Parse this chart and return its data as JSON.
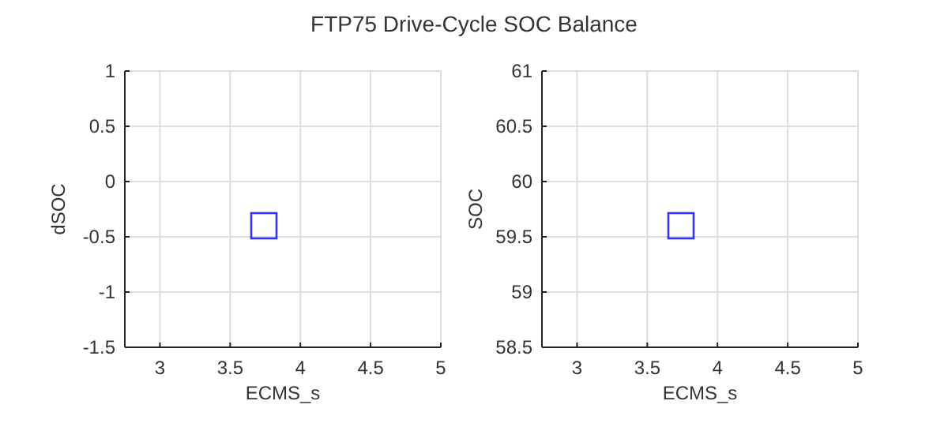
{
  "chart_data": [
    {
      "type": "scatter",
      "title": "FTP75 Drive-Cycle SOC Balance",
      "xlabel": "ECMS_s",
      "ylabel": "dSOC",
      "x": [
        3.74
      ],
      "series": [
        {
          "color": "#3333ff",
          "values": [
            -0.4
          ]
        }
      ],
      "xlim": [
        2.75,
        5
      ],
      "xticks": [
        3,
        3.5,
        4,
        4.5,
        5
      ],
      "ylim": [
        -1.5,
        1
      ],
      "yticks": [
        -1.5,
        -1,
        -0.5,
        0,
        0.5,
        1
      ],
      "grid": true,
      "marker": "square"
    },
    {
      "type": "scatter",
      "xlabel": "ECMS_s",
      "ylabel": "SOC",
      "x": [
        3.74
      ],
      "series": [
        {
          "color": "#3333ff",
          "values": [
            59.6
          ]
        }
      ],
      "xlim": [
        2.75,
        5
      ],
      "xticks": [
        3,
        3.5,
        4,
        4.5,
        5
      ],
      "ylim": [
        58.5,
        61
      ],
      "yticks": [
        58.5,
        59,
        59.5,
        60,
        60.5,
        61
      ],
      "grid": true,
      "marker": "square"
    }
  ]
}
